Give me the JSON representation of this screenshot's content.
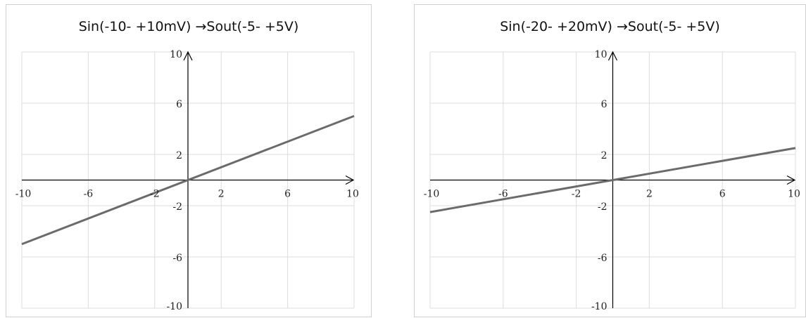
{
  "chart_data": [
    {
      "type": "line",
      "title": "Sin(-10- +10mV) →Sout(-5- +5V)",
      "xlim": [
        -10,
        10
      ],
      "ylim": [
        -10,
        10
      ],
      "x_ticks": [
        "-10",
        "-6",
        "-2",
        "2",
        "6",
        "10"
      ],
      "y_ticks": [
        "10",
        "6",
        "2",
        "-2",
        "-6",
        "-10"
      ],
      "grid": true,
      "series": [
        {
          "x": [
            -10,
            10
          ],
          "y": [
            -5,
            5
          ]
        }
      ],
      "colors": {
        "line": "#6b6b6b",
        "grid": "#dcdcdc",
        "axis": "#000000"
      }
    },
    {
      "type": "line",
      "title": "Sin(-20- +20mV) →Sout(-5- +5V)",
      "xlim": [
        -10,
        10
      ],
      "ylim": [
        -10,
        10
      ],
      "x_ticks": [
        "-10",
        "-6",
        "-2",
        "2",
        "6",
        "10"
      ],
      "y_ticks": [
        "10",
        "6",
        "2",
        "-2",
        "-6",
        "-10"
      ],
      "grid": true,
      "series": [
        {
          "x": [
            -10,
            10
          ],
          "y": [
            -2.5,
            2.5
          ]
        }
      ],
      "colors": {
        "line": "#6b6b6b",
        "grid": "#dcdcdc",
        "axis": "#000000"
      }
    }
  ]
}
